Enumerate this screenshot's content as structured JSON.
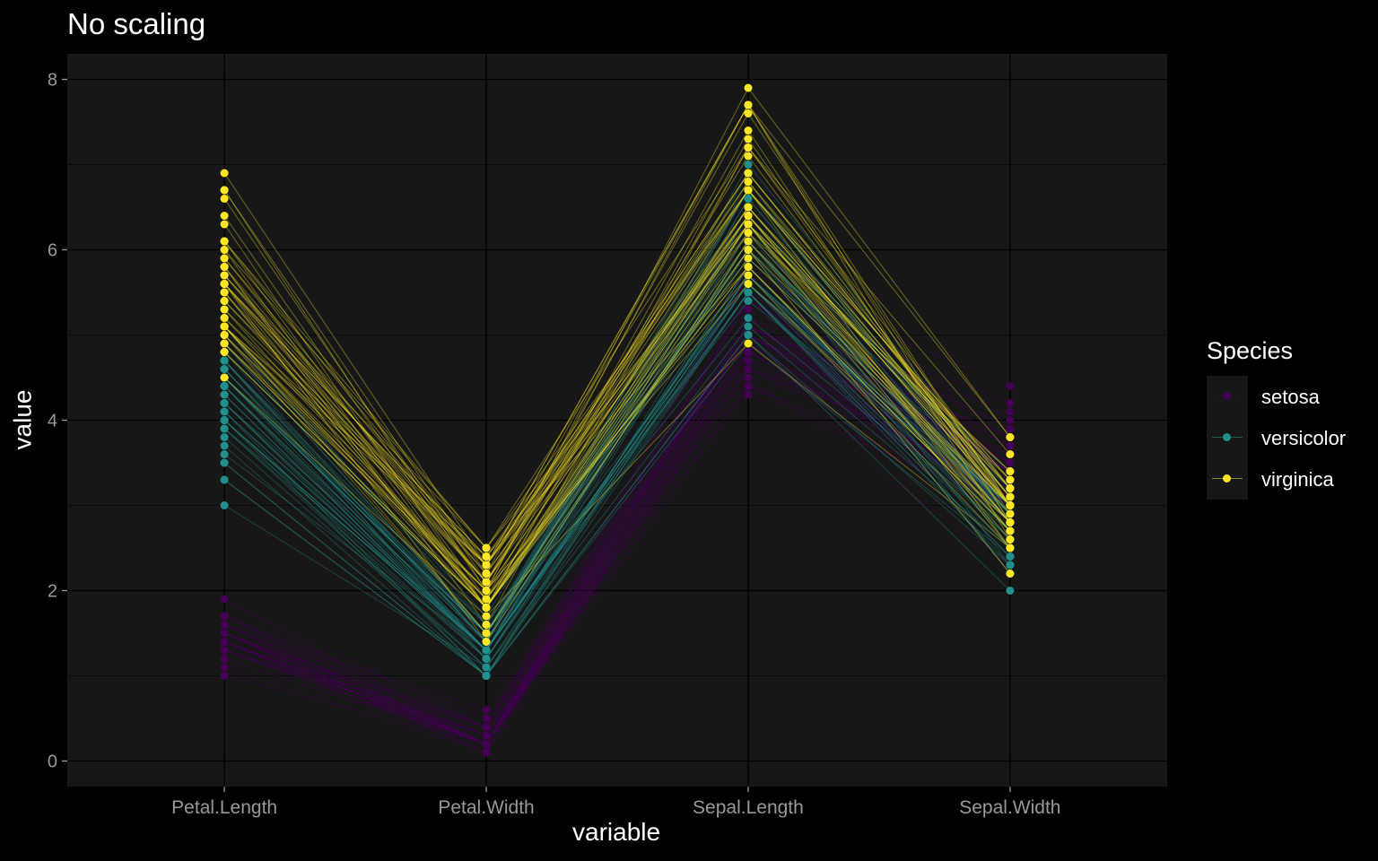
{
  "chart_data": {
    "type": "line",
    "title": "No scaling",
    "xlabel": "variable",
    "ylabel": "value",
    "categories": [
      "Petal.Length",
      "Petal.Width",
      "Sepal.Length",
      "Sepal.Width"
    ],
    "ylim": [
      -0.3,
      8.3
    ],
    "yticks": [
      0,
      2,
      4,
      6,
      8
    ],
    "grid": true,
    "legend_position": "right",
    "legend_title": "Species",
    "series": [
      {
        "name": "setosa",
        "color": "#440154",
        "values": [
          [
            1.4,
            0.2,
            5.1,
            3.5
          ],
          [
            1.4,
            0.2,
            4.9,
            3.0
          ],
          [
            1.3,
            0.2,
            4.7,
            3.2
          ],
          [
            1.5,
            0.2,
            4.6,
            3.1
          ],
          [
            1.4,
            0.2,
            5.0,
            3.6
          ],
          [
            1.7,
            0.4,
            5.4,
            3.9
          ],
          [
            1.4,
            0.3,
            4.6,
            3.4
          ],
          [
            1.5,
            0.2,
            5.0,
            3.4
          ],
          [
            1.4,
            0.2,
            4.4,
            2.9
          ],
          [
            1.5,
            0.1,
            4.9,
            3.1
          ],
          [
            1.5,
            0.2,
            5.4,
            3.7
          ],
          [
            1.6,
            0.2,
            4.8,
            3.4
          ],
          [
            1.4,
            0.1,
            4.8,
            3.0
          ],
          [
            1.1,
            0.1,
            4.3,
            3.0
          ],
          [
            1.2,
            0.2,
            5.8,
            4.0
          ],
          [
            1.5,
            0.4,
            5.7,
            4.4
          ],
          [
            1.3,
            0.4,
            5.4,
            3.9
          ],
          [
            1.4,
            0.3,
            5.1,
            3.5
          ],
          [
            1.7,
            0.3,
            5.7,
            3.8
          ],
          [
            1.5,
            0.3,
            5.1,
            3.8
          ],
          [
            1.7,
            0.2,
            5.4,
            3.4
          ],
          [
            1.5,
            0.4,
            5.1,
            3.7
          ],
          [
            1.0,
            0.2,
            4.6,
            3.6
          ],
          [
            1.7,
            0.5,
            5.1,
            3.3
          ],
          [
            1.9,
            0.2,
            4.8,
            3.4
          ],
          [
            1.6,
            0.2,
            5.0,
            3.0
          ],
          [
            1.6,
            0.4,
            5.0,
            3.4
          ],
          [
            1.5,
            0.2,
            5.2,
            3.5
          ],
          [
            1.4,
            0.2,
            5.2,
            3.4
          ],
          [
            1.6,
            0.2,
            4.7,
            3.2
          ],
          [
            1.6,
            0.2,
            4.8,
            3.1
          ],
          [
            1.5,
            0.4,
            5.4,
            3.4
          ],
          [
            1.5,
            0.1,
            5.2,
            4.1
          ],
          [
            1.4,
            0.2,
            5.5,
            4.2
          ],
          [
            1.5,
            0.2,
            4.9,
            3.1
          ],
          [
            1.2,
            0.2,
            5.0,
            3.2
          ],
          [
            1.3,
            0.2,
            5.5,
            3.5
          ],
          [
            1.4,
            0.1,
            4.9,
            3.6
          ],
          [
            1.3,
            0.2,
            4.4,
            3.0
          ],
          [
            1.5,
            0.2,
            5.1,
            3.4
          ],
          [
            1.3,
            0.3,
            5.0,
            3.5
          ],
          [
            1.3,
            0.3,
            4.5,
            2.3
          ],
          [
            1.3,
            0.2,
            4.4,
            3.2
          ],
          [
            1.6,
            0.6,
            5.0,
            3.5
          ],
          [
            1.9,
            0.4,
            5.1,
            3.8
          ],
          [
            1.4,
            0.3,
            4.8,
            3.0
          ],
          [
            1.6,
            0.2,
            5.1,
            3.8
          ],
          [
            1.4,
            0.2,
            4.6,
            3.2
          ],
          [
            1.5,
            0.2,
            5.3,
            3.7
          ],
          [
            1.4,
            0.2,
            5.0,
            3.3
          ]
        ]
      },
      {
        "name": "versicolor",
        "color": "#21908C",
        "values": [
          [
            4.7,
            1.4,
            7.0,
            3.2
          ],
          [
            4.5,
            1.5,
            6.4,
            3.2
          ],
          [
            4.9,
            1.5,
            6.9,
            3.1
          ],
          [
            4.0,
            1.3,
            5.5,
            2.3
          ],
          [
            4.6,
            1.5,
            6.5,
            2.8
          ],
          [
            4.5,
            1.3,
            5.7,
            2.8
          ],
          [
            4.7,
            1.6,
            6.3,
            3.3
          ],
          [
            3.3,
            1.0,
            4.9,
            2.4
          ],
          [
            4.6,
            1.3,
            6.6,
            2.9
          ],
          [
            3.9,
            1.4,
            5.2,
            2.7
          ],
          [
            3.5,
            1.0,
            5.0,
            2.0
          ],
          [
            4.2,
            1.5,
            5.9,
            3.0
          ],
          [
            4.0,
            1.0,
            6.0,
            2.2
          ],
          [
            4.7,
            1.4,
            6.1,
            2.9
          ],
          [
            3.6,
            1.3,
            5.6,
            2.9
          ],
          [
            4.4,
            1.4,
            6.7,
            3.1
          ],
          [
            4.5,
            1.5,
            5.6,
            3.0
          ],
          [
            4.1,
            1.0,
            5.8,
            2.7
          ],
          [
            4.5,
            1.5,
            6.2,
            2.2
          ],
          [
            3.9,
            1.1,
            5.6,
            2.5
          ],
          [
            4.8,
            1.8,
            5.9,
            3.2
          ],
          [
            4.0,
            1.3,
            6.1,
            2.8
          ],
          [
            4.9,
            1.5,
            6.3,
            2.5
          ],
          [
            4.7,
            1.2,
            6.1,
            2.8
          ],
          [
            4.3,
            1.3,
            6.4,
            2.9
          ],
          [
            4.4,
            1.4,
            6.6,
            3.0
          ],
          [
            4.8,
            1.4,
            6.8,
            2.8
          ],
          [
            5.0,
            1.7,
            6.7,
            3.0
          ],
          [
            4.5,
            1.5,
            6.0,
            2.9
          ],
          [
            3.5,
            1.0,
            5.7,
            2.6
          ],
          [
            3.8,
            1.1,
            5.5,
            2.4
          ],
          [
            3.7,
            1.0,
            5.5,
            2.4
          ],
          [
            3.9,
            1.2,
            5.8,
            2.7
          ],
          [
            5.1,
            1.6,
            6.0,
            2.7
          ],
          [
            4.5,
            1.5,
            5.4,
            3.0
          ],
          [
            4.5,
            1.6,
            6.0,
            3.4
          ],
          [
            4.7,
            1.5,
            6.7,
            3.1
          ],
          [
            4.4,
            1.3,
            6.3,
            2.3
          ],
          [
            4.1,
            1.3,
            5.6,
            3.0
          ],
          [
            4.0,
            1.3,
            5.5,
            2.5
          ],
          [
            4.4,
            1.2,
            5.5,
            2.6
          ],
          [
            4.6,
            1.4,
            6.1,
            3.0
          ],
          [
            4.0,
            1.2,
            5.8,
            2.6
          ],
          [
            3.3,
            1.0,
            5.0,
            2.3
          ],
          [
            4.2,
            1.3,
            5.6,
            2.7
          ],
          [
            4.2,
            1.2,
            5.7,
            3.0
          ],
          [
            4.2,
            1.3,
            5.7,
            2.9
          ],
          [
            4.3,
            1.3,
            6.2,
            2.9
          ],
          [
            3.0,
            1.1,
            5.1,
            2.5
          ],
          [
            4.1,
            1.3,
            5.7,
            2.8
          ]
        ]
      },
      {
        "name": "virginica",
        "color": "#FDE725",
        "values": [
          [
            6.0,
            2.5,
            6.3,
            3.3
          ],
          [
            5.1,
            1.9,
            5.8,
            2.7
          ],
          [
            5.9,
            2.1,
            7.1,
            3.0
          ],
          [
            5.6,
            1.8,
            6.3,
            2.9
          ],
          [
            5.8,
            2.2,
            6.5,
            3.0
          ],
          [
            6.6,
            2.1,
            7.6,
            3.0
          ],
          [
            4.5,
            1.7,
            4.9,
            2.5
          ],
          [
            6.3,
            1.8,
            7.3,
            2.9
          ],
          [
            5.8,
            1.8,
            6.7,
            2.5
          ],
          [
            6.1,
            2.5,
            7.2,
            3.6
          ],
          [
            5.1,
            2.0,
            6.5,
            3.2
          ],
          [
            5.3,
            1.9,
            6.4,
            2.7
          ],
          [
            5.5,
            2.1,
            6.8,
            3.0
          ],
          [
            5.0,
            2.0,
            5.7,
            2.5
          ],
          [
            5.1,
            2.4,
            5.8,
            2.8
          ],
          [
            5.3,
            2.3,
            6.4,
            3.2
          ],
          [
            5.5,
            1.8,
            6.5,
            3.0
          ],
          [
            6.7,
            2.2,
            7.7,
            3.8
          ],
          [
            6.9,
            2.3,
            7.7,
            2.6
          ],
          [
            5.0,
            1.5,
            6.0,
            2.2
          ],
          [
            5.7,
            2.3,
            6.9,
            3.2
          ],
          [
            4.9,
            2.0,
            5.6,
            2.8
          ],
          [
            6.7,
            2.0,
            7.7,
            2.8
          ],
          [
            4.9,
            1.8,
            6.3,
            2.7
          ],
          [
            5.7,
            2.1,
            6.7,
            3.3
          ],
          [
            6.0,
            1.8,
            7.2,
            3.2
          ],
          [
            4.8,
            1.8,
            6.2,
            2.8
          ],
          [
            4.9,
            1.8,
            6.1,
            3.0
          ],
          [
            5.6,
            2.1,
            6.4,
            2.8
          ],
          [
            5.8,
            1.6,
            7.2,
            3.0
          ],
          [
            6.1,
            1.9,
            7.4,
            2.8
          ],
          [
            6.4,
            2.0,
            7.9,
            3.8
          ],
          [
            5.6,
            2.2,
            6.4,
            2.8
          ],
          [
            5.1,
            1.5,
            6.3,
            2.8
          ],
          [
            5.6,
            1.4,
            6.1,
            2.6
          ],
          [
            6.1,
            2.3,
            7.7,
            3.0
          ],
          [
            5.6,
            2.4,
            6.3,
            3.4
          ],
          [
            5.5,
            1.8,
            6.4,
            3.1
          ],
          [
            4.8,
            1.8,
            6.0,
            3.0
          ],
          [
            5.4,
            2.1,
            6.9,
            3.1
          ],
          [
            5.6,
            2.4,
            6.7,
            3.1
          ],
          [
            5.1,
            2.3,
            6.9,
            3.1
          ],
          [
            5.1,
            1.9,
            5.8,
            2.7
          ],
          [
            5.9,
            2.3,
            6.8,
            3.2
          ],
          [
            5.7,
            2.5,
            6.7,
            3.3
          ],
          [
            5.2,
            2.3,
            6.7,
            3.0
          ],
          [
            5.0,
            1.9,
            6.3,
            2.5
          ],
          [
            5.2,
            2.0,
            6.5,
            3.0
          ],
          [
            5.4,
            2.3,
            6.2,
            3.4
          ],
          [
            5.1,
            1.8,
            5.9,
            3.0
          ]
        ]
      }
    ]
  }
}
